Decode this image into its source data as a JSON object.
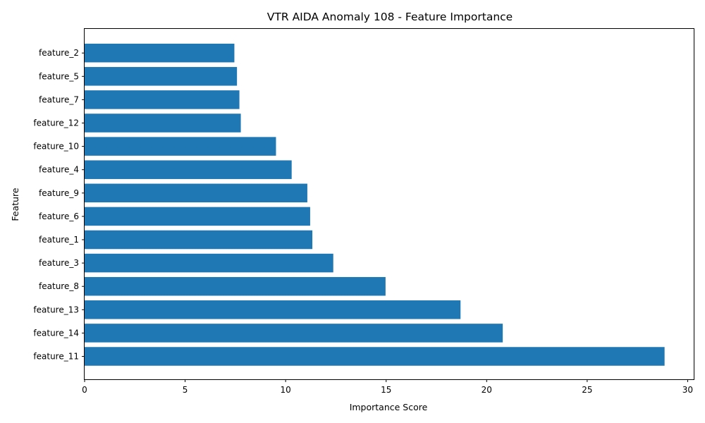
{
  "chart_data": {
    "type": "bar",
    "orientation": "horizontal",
    "title": "VTR AIDA Anomaly 108 - Feature Importance",
    "xlabel": "Importance Score",
    "ylabel": "Feature",
    "categories": [
      "feature_11",
      "feature_14",
      "feature_13",
      "feature_8",
      "feature_3",
      "feature_1",
      "feature_6",
      "feature_9",
      "feature_4",
      "feature_10",
      "feature_12",
      "feature_7",
      "feature_5",
      "feature_2"
    ],
    "values": [
      28.85,
      20.8,
      18.7,
      14.97,
      12.37,
      11.33,
      11.22,
      11.08,
      10.3,
      9.52,
      7.77,
      7.7,
      7.58,
      7.45
    ],
    "xlim": [
      0,
      30.3
    ],
    "xticks": [
      0,
      5,
      10,
      15,
      20,
      25,
      30
    ],
    "bar_color": "#1f77b4",
    "grid": false
  }
}
